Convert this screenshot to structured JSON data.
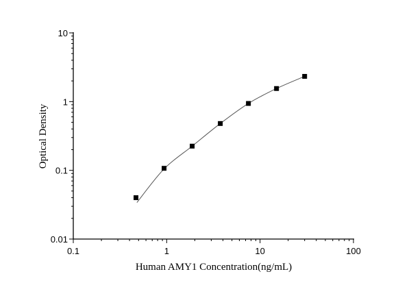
{
  "chart_data": {
    "type": "scatter",
    "title": "",
    "xlabel": "Human AMY1 Concentration(ng/mL)",
    "ylabel": "Optical Density",
    "x_scale": "log",
    "y_scale": "log",
    "xlim": [
      0.1,
      100
    ],
    "ylim": [
      0.01,
      10
    ],
    "x_ticks": [
      "0.1",
      "1",
      "10",
      "100"
    ],
    "y_ticks": [
      "0.01",
      "0.1",
      "1",
      "10"
    ],
    "grid": false,
    "series": [
      {
        "x": [
          0.469,
          0.938,
          1.875,
          3.75,
          7.5,
          15,
          30
        ],
        "y": [
          0.04,
          0.107,
          0.225,
          0.48,
          0.94,
          1.55,
          2.33
        ],
        "marker": "square",
        "color": "#000000"
      }
    ],
    "fit_curve": {
      "x": [
        0.48,
        0.938,
        1.875,
        3.75,
        7.5,
        15,
        30
      ],
      "y": [
        0.034,
        0.105,
        0.225,
        0.48,
        0.94,
        1.55,
        2.33
      ],
      "color": "#555555"
    }
  }
}
